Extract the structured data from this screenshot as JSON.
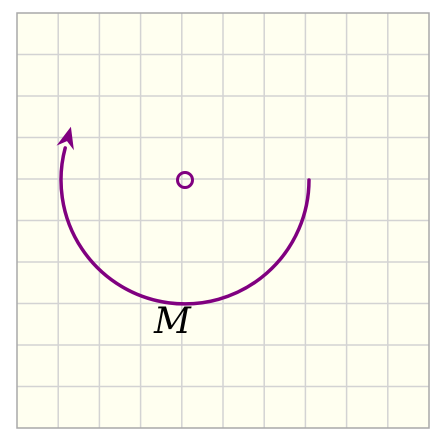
{
  "diagram": {
    "grid": {
      "columns": 10,
      "rows": 10,
      "background_color": "#fffff0",
      "line_color": "#d3d3d3",
      "border_color": "#a9a9a9"
    },
    "rotation": {
      "direction": "counterclockwise",
      "arc_color": "#800080",
      "center_marker": "open-circle",
      "center_color": "#800080",
      "arrowhead": "arrow"
    },
    "point_label": {
      "text": "M"
    }
  }
}
